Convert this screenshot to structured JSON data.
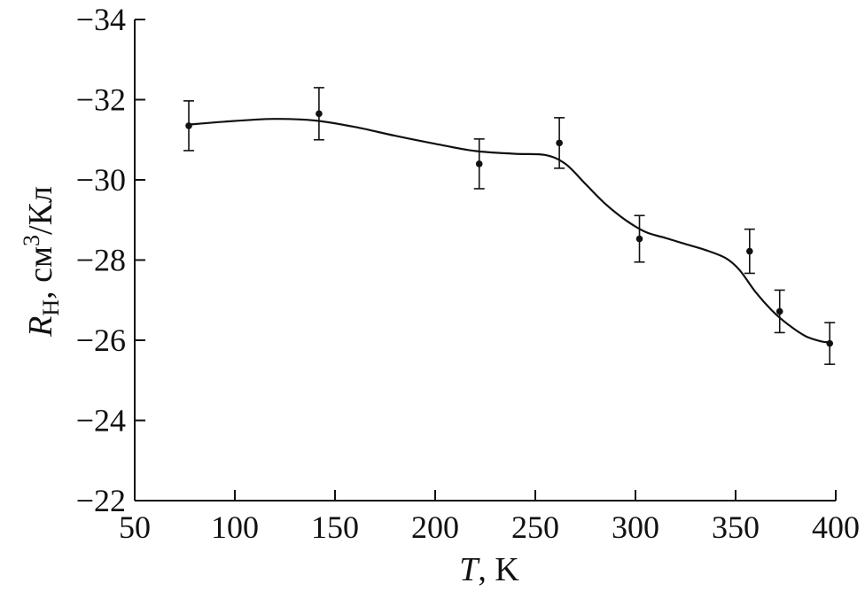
{
  "chart_data": {
    "type": "scatter",
    "xlabel": {
      "var": "T",
      "rest": ", K"
    },
    "ylabel": {
      "var": "R",
      "sub": "H",
      "rest": ", см",
      "sup": "3",
      "tail": "/Кл"
    },
    "xlim": [
      50,
      400
    ],
    "ylim": [
      -22,
      -34
    ],
    "x_ticks": [
      50,
      100,
      150,
      200,
      250,
      300,
      350,
      400
    ],
    "y_ticks": [
      -22,
      -24,
      -26,
      -28,
      -30,
      -32,
      -34
    ],
    "y_tick_labels": [
      "−22",
      "−24",
      "−26",
      "−28",
      "−30",
      "−32",
      "−34"
    ],
    "grid": false,
    "series": [
      {
        "points": [
          {
            "x": 77,
            "y": -31.35,
            "err": 0.62
          },
          {
            "x": 142,
            "y": -31.65,
            "err": 0.65
          },
          {
            "x": 222,
            "y": -30.4,
            "err": 0.62
          },
          {
            "x": 262,
            "y": -30.92,
            "err": 0.63
          },
          {
            "x": 302,
            "y": -28.53,
            "err": 0.58
          },
          {
            "x": 357,
            "y": -28.22,
            "err": 0.55
          },
          {
            "x": 372,
            "y": -26.72,
            "err": 0.53
          },
          {
            "x": 397,
            "y": -25.92,
            "err": 0.52
          }
        ],
        "color": "#111111"
      },
      {
        "type": "line",
        "x": [
          77,
          100,
          120,
          140,
          160,
          180,
          200,
          220,
          240,
          255,
          265,
          275,
          285,
          295,
          305,
          315,
          325,
          335,
          345,
          352,
          360,
          368,
          376,
          385,
          393,
          397
        ],
        "y": [
          -31.38,
          -31.47,
          -31.52,
          -31.48,
          -31.32,
          -31.1,
          -30.9,
          -30.72,
          -30.65,
          -30.62,
          -30.4,
          -29.9,
          -29.4,
          -29.0,
          -28.7,
          -28.55,
          -28.4,
          -28.25,
          -28.05,
          -27.75,
          -27.2,
          -26.75,
          -26.4,
          -26.1,
          -25.97,
          -25.95
        ],
        "color": "#111111"
      }
    ]
  }
}
